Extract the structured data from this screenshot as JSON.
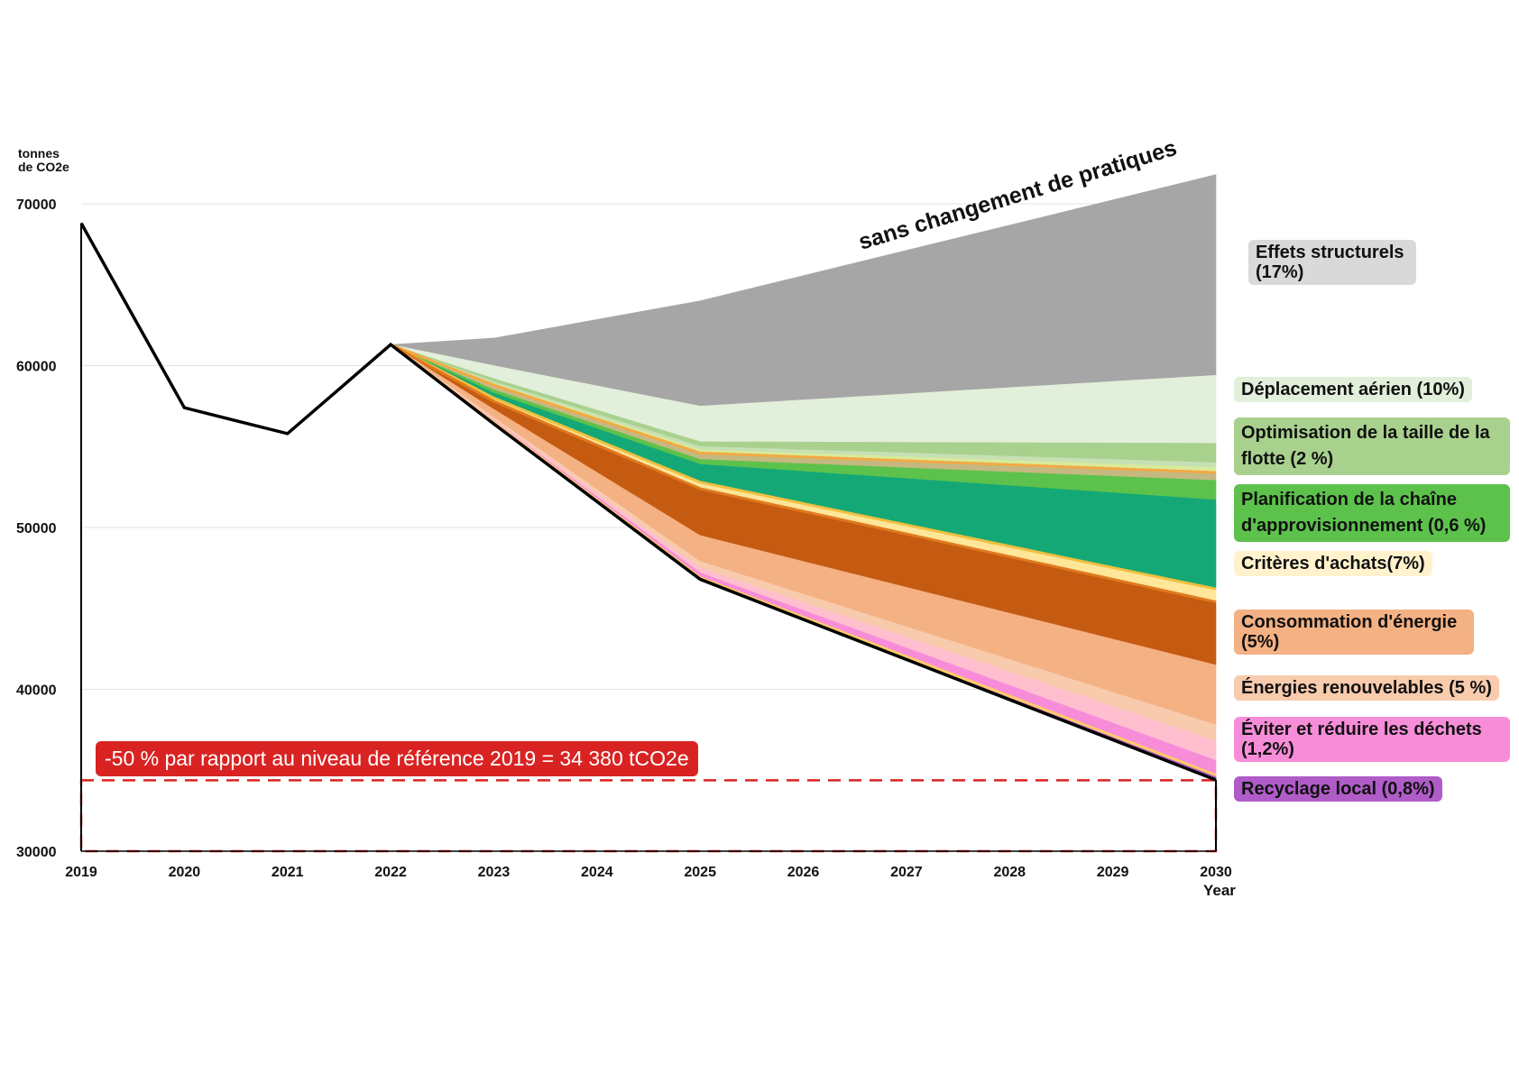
{
  "chart_data": {
    "type": "area",
    "ylabel": "tonnes\nde CO2e",
    "xlabel": "Year",
    "xlim": [
      2019,
      2030
    ],
    "ylim": [
      30000,
      72000
    ],
    "x_ticks": [
      2019,
      2020,
      2021,
      2022,
      2023,
      2024,
      2025,
      2026,
      2027,
      2028,
      2029,
      2030
    ],
    "y_ticks": [
      30000,
      40000,
      50000,
      60000,
      70000
    ],
    "historical_line": {
      "x": [
        2019,
        2020,
        2021,
        2022
      ],
      "y": [
        68800,
        57400,
        55800,
        61300
      ]
    },
    "bau_annotation": "sans changement de pratiques",
    "stack_x": [
      2022,
      2023,
      2025,
      2030
    ],
    "boundaries": [
      [
        61300,
        61700,
        64000,
        71800
      ],
      [
        61300,
        60000,
        57500,
        59400
      ],
      [
        61300,
        59200,
        55300,
        55200
      ],
      [
        61300,
        59000,
        55000,
        54000
      ],
      [
        61300,
        58900,
        54800,
        53700
      ],
      [
        61300,
        58800,
        54600,
        53400
      ],
      [
        61300,
        58500,
        54200,
        52900
      ],
      [
        61300,
        58300,
        53900,
        51700
      ],
      [
        61300,
        58000,
        52800,
        46200
      ],
      [
        61300,
        57800,
        52400,
        45400
      ],
      [
        61300,
        57300,
        49500,
        41500
      ],
      [
        61300,
        56800,
        47900,
        37800
      ],
      [
        61300,
        56700,
        47500,
        36800
      ],
      [
        61300,
        56600,
        47200,
        35600
      ],
      [
        61300,
        56500,
        46900,
        34700
      ],
      [
        61300,
        56400,
        46800,
        34400
      ]
    ],
    "band_colors": [
      "#a6a6a6",
      "#e2efda",
      "#a9d18e",
      "#c6e0b4",
      "#d9ea9a",
      "#c5b880",
      "#5cc24c",
      "#14a876",
      "#ffe699",
      "#c55a11",
      "#f4b183",
      "#f8cbad",
      "#ffbfcf",
      "#f78dd8",
      "#b05cc8"
    ],
    "band_lines": [
      [
        5,
        "#f2a945"
      ],
      [
        8,
        "#f0c040"
      ],
      [
        9,
        "#e07a1e"
      ],
      [
        14,
        "#ffcc66"
      ]
    ],
    "target": {
      "value": 34380,
      "label": "-50 % par rapport au niveau de référence 2019 = 34 380 tCO2e",
      "color": "#d92323"
    },
    "legend": [
      {
        "label": "Effets structurels (17%)",
        "color": "#d9d9d9"
      },
      {
        "label": "Déplacement aérien (10%)",
        "color": "#e2efda"
      },
      {
        "label": "Optimisation de la taille de la flotte (2 %)",
        "color": "#a9d18e"
      },
      {
        "label": "Planification de la chaîne d'approvisionnement (0,6 %)",
        "color": "#5cc24c"
      },
      {
        "label": "Critères d'achats(7%)",
        "color": "#fff2cc"
      },
      {
        "label": "Consommation d'énergie (5%)",
        "color": "#f4b183"
      },
      {
        "label": "Énergies renouvelables (5 %)",
        "color": "#f8cbad"
      },
      {
        "label": "Éviter et réduire les déchets (1,2%)",
        "color": "#f78dd8"
      },
      {
        "label": "Recyclage local (0,8%)",
        "color": "#b05cc8"
      }
    ]
  }
}
